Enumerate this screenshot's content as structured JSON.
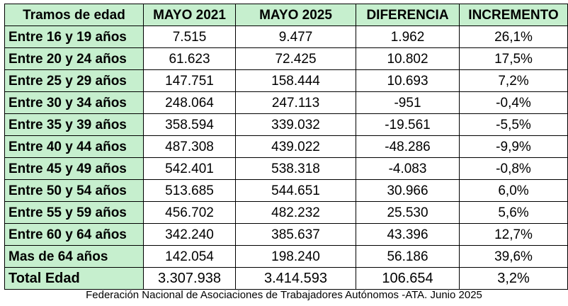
{
  "table": {
    "headers": [
      "Tramos de edad",
      "MAYO 2021",
      "MAYO 2025",
      "DIFERENCIA",
      "INCREMENTO"
    ],
    "rows": [
      [
        "Entre 16 y 19 años",
        "7.515",
        "9.477",
        "1.962",
        "26,1%"
      ],
      [
        "Entre 20 y 24 años",
        "61.623",
        "72.425",
        "10.802",
        "17,5%"
      ],
      [
        "Entre 25 y 29 años",
        "147.751",
        "158.444",
        "10.693",
        "7,2%"
      ],
      [
        "Entre 30 y 34 años",
        "248.064",
        "247.113",
        "-951",
        "-0,4%"
      ],
      [
        "Entre 35 y 39 años",
        "358.594",
        "339.032",
        "-19.561",
        "-5,5%"
      ],
      [
        "Entre 40 y 44 años",
        "487.308",
        "439.022",
        "-48.286",
        "-9,9%"
      ],
      [
        "Entre 45 y 49 años",
        "542.401",
        "538.318",
        "-4.083",
        "-0,8%"
      ],
      [
        "Entre 50 y 54 años",
        "513.685",
        "544.651",
        "30.966",
        "6,0%"
      ],
      [
        "Entre 55 y 59 años",
        "456.702",
        "482.232",
        "25.530",
        "5,6%"
      ],
      [
        "Entre 60 y 64 años",
        "342.240",
        "385.637",
        "43.396",
        "12,7%"
      ],
      [
        "Mas de 64 años",
        "142.054",
        "198.240",
        "56.186",
        "39,6%"
      ],
      [
        "Total Edad",
        "3.307.938",
        "3.414.593",
        "106.654",
        "3,2%"
      ]
    ]
  },
  "colors": {
    "header_fill": "#c6efce",
    "border": "#000000"
  },
  "footer": "Federación Nacional de Asociaciones de Trabajadores Autónomos -ATA. Junio 2025"
}
